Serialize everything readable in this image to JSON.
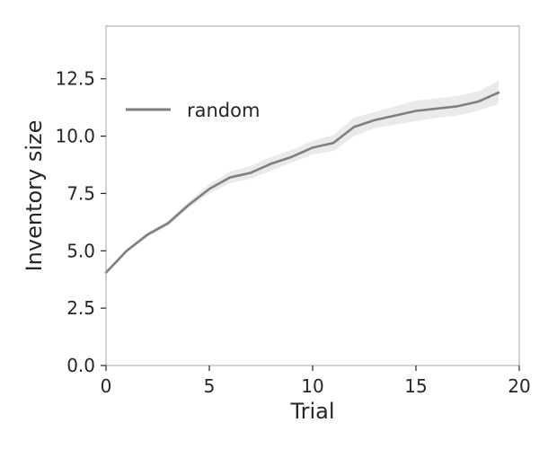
{
  "chart_data": {
    "type": "line",
    "xlabel": "Trial",
    "ylabel": "Inventory size",
    "xlim": [
      0,
      20
    ],
    "ylim": [
      0,
      14.8
    ],
    "xticks": [
      0,
      5,
      10,
      15,
      20
    ],
    "xtick_labels": [
      "0",
      "5",
      "10",
      "15",
      "20"
    ],
    "yticks": [
      0,
      2.5,
      5,
      7.5,
      10,
      12.5
    ],
    "ytick_labels": [
      "0.0",
      "2.5",
      "5.0",
      "7.5",
      "10.0",
      "12.5"
    ],
    "grid": false,
    "legend_position": "upper-left",
    "series": [
      {
        "name": "random",
        "color": "#7f7f7f",
        "x": [
          0,
          1,
          2,
          3,
          4,
          5,
          6,
          7,
          8,
          9,
          10,
          11,
          12,
          13,
          14,
          15,
          16,
          17,
          18,
          19
        ],
        "y": [
          4.05,
          5.0,
          5.7,
          6.2,
          7.0,
          7.7,
          8.2,
          8.4,
          8.8,
          9.1,
          9.5,
          9.7,
          10.4,
          10.7,
          10.9,
          11.1,
          11.2,
          11.3,
          11.5,
          11.9
        ],
        "lower": [
          4.0,
          4.95,
          5.6,
          6.1,
          6.85,
          7.5,
          7.95,
          8.15,
          8.5,
          8.85,
          9.2,
          9.35,
          10.0,
          10.35,
          10.5,
          10.65,
          10.8,
          10.9,
          11.1,
          11.4
        ],
        "upper": [
          4.1,
          5.05,
          5.8,
          6.3,
          7.15,
          7.9,
          8.45,
          8.7,
          9.1,
          9.4,
          9.8,
          10.05,
          10.8,
          11.05,
          11.3,
          11.55,
          11.65,
          11.75,
          11.95,
          12.4
        ]
      }
    ]
  }
}
